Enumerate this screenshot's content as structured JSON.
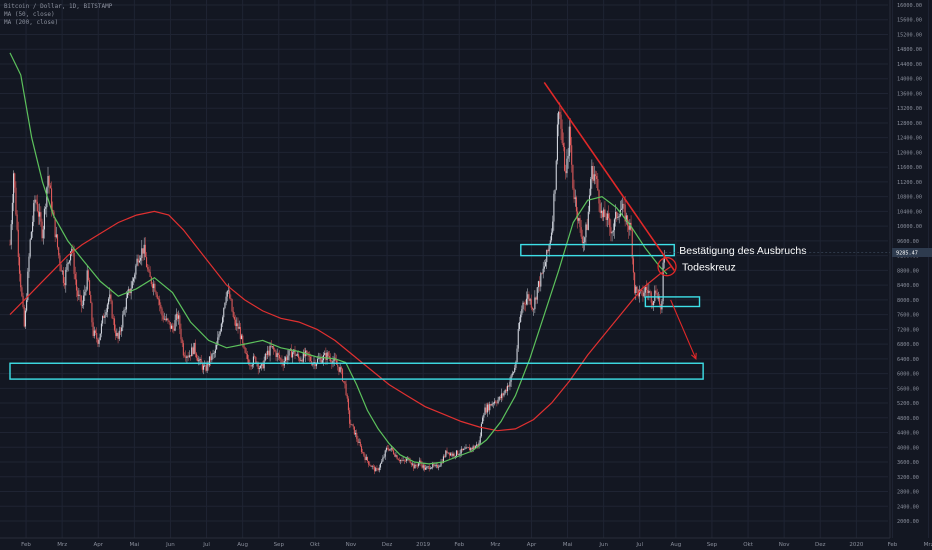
{
  "legend": {
    "symbol_line": "Bitcoin / Dollar, 1D, BITSTAMP",
    "ma50_line": "MA (50, close)",
    "ma200_line": "MA (200, close)"
  },
  "price_tag": "9285.47",
  "annotations": {
    "breakout_confirmation": "Bestätigung des Ausbruchs",
    "death_cross": "Todeskreuz"
  },
  "colors": {
    "background": "#131722",
    "grid": "#1f2433",
    "axis_text": "#8a8f9c",
    "up_candle": "#cfd3dc",
    "down_candle": "#e05b5b",
    "ma50": "#5cc15c",
    "ma200": "#e03030",
    "zones": "#3ee0e8",
    "trendline": "#e02828",
    "price_tag_bg": "#2e3b4e"
  },
  "chart_data": {
    "type": "candlestick",
    "x_axis_labels": [
      "Feb",
      "Mrz",
      "Apr",
      "Mai",
      "Jun",
      "Jul",
      "Aug",
      "Sep",
      "Okt",
      "Nov",
      "Dez",
      "2019",
      "Feb",
      "Mrz",
      "Apr",
      "Mai",
      "Jun",
      "Jul",
      "Aug",
      "Sep",
      "Okt",
      "Nov",
      "Dez",
      "2020",
      "Feb",
      "Mrz"
    ],
    "y_axis_labels": [
      "2000.00",
      "2400.00",
      "2800.00",
      "3200.00",
      "3600.00",
      "4000.00",
      "4400.00",
      "4800.00",
      "5200.00",
      "5600.00",
      "6000.00",
      "6400.00",
      "6800.00",
      "7200.00",
      "7600.00",
      "8000.00",
      "8400.00",
      "8800.00",
      "9200.00",
      "9600.00",
      "10000.00",
      "10400.00",
      "10800.00",
      "11200.00",
      "11600.00",
      "12000.00",
      "12400.00",
      "12800.00",
      "13200.00",
      "13600.00",
      "14000.00",
      "14400.00",
      "14800.00",
      "15200.00",
      "15600.00",
      "16000.00"
    ],
    "ylim": [
      2000,
      16000
    ],
    "x_range_months": [
      0.0,
      26.6
    ],
    "price_path": [
      [
        0.0,
        9500
      ],
      [
        0.1,
        11500
      ],
      [
        0.25,
        9000
      ],
      [
        0.4,
        7200
      ],
      [
        0.55,
        9500
      ],
      [
        0.7,
        10800
      ],
      [
        0.9,
        9800
      ],
      [
        1.05,
        11400
      ],
      [
        1.2,
        10200
      ],
      [
        1.35,
        9200
      ],
      [
        1.5,
        8500
      ],
      [
        1.7,
        9500
      ],
      [
        1.85,
        8200
      ],
      [
        2.0,
        7800
      ],
      [
        2.15,
        8700
      ],
      [
        2.3,
        7100
      ],
      [
        2.45,
        6900
      ],
      [
        2.6,
        7600
      ],
      [
        2.75,
        8100
      ],
      [
        2.9,
        7200
      ],
      [
        3.0,
        6900
      ],
      [
        3.2,
        7900
      ],
      [
        3.4,
        8500
      ],
      [
        3.55,
        9200
      ],
      [
        3.7,
        9400
      ],
      [
        3.85,
        8600
      ],
      [
        4.0,
        8400
      ],
      [
        4.1,
        8100
      ],
      [
        4.2,
        7600
      ],
      [
        4.35,
        7400
      ],
      [
        4.5,
        7200
      ],
      [
        4.65,
        7600
      ],
      [
        4.8,
        6600
      ],
      [
        4.95,
        6500
      ],
      [
        5.1,
        6700
      ],
      [
        5.25,
        6300
      ],
      [
        5.4,
        6100
      ],
      [
        5.55,
        6400
      ],
      [
        5.7,
        6600
      ],
      [
        5.85,
        7400
      ],
      [
        6.0,
        8300
      ],
      [
        6.1,
        8000
      ],
      [
        6.2,
        7400
      ],
      [
        6.35,
        7200
      ],
      [
        6.5,
        6500
      ],
      [
        6.65,
        6300
      ],
      [
        6.8,
        6400
      ],
      [
        6.95,
        6100
      ],
      [
        7.1,
        6500
      ],
      [
        7.25,
        6700
      ],
      [
        7.4,
        6500
      ],
      [
        7.55,
        6300
      ],
      [
        7.7,
        6500
      ],
      [
        7.85,
        6600
      ],
      [
        8.0,
        6400
      ],
      [
        8.2,
        6500
      ],
      [
        8.4,
        6300
      ],
      [
        8.6,
        6400
      ],
      [
        8.8,
        6500
      ],
      [
        9.0,
        6300
      ],
      [
        9.15,
        6100
      ],
      [
        9.3,
        5600
      ],
      [
        9.4,
        4700
      ],
      [
        9.55,
        4400
      ],
      [
        9.7,
        4000
      ],
      [
        9.85,
        3700
      ],
      [
        10.0,
        3500
      ],
      [
        10.15,
        3350
      ],
      [
        10.3,
        3600
      ],
      [
        10.45,
        4000
      ],
      [
        10.6,
        3900
      ],
      [
        10.75,
        3700
      ],
      [
        10.9,
        3600
      ],
      [
        11.05,
        3700
      ],
      [
        11.2,
        3450
      ],
      [
        11.35,
        3600
      ],
      [
        11.5,
        3400
      ],
      [
        11.65,
        3500
      ],
      [
        11.8,
        3450
      ],
      [
        11.95,
        3600
      ],
      [
        12.1,
        3900
      ],
      [
        12.25,
        3800
      ],
      [
        12.4,
        3850
      ],
      [
        12.55,
        3900
      ],
      [
        12.7,
        3950
      ],
      [
        12.85,
        4000
      ],
      [
        13.0,
        4100
      ],
      [
        13.1,
        4950
      ],
      [
        13.25,
        5100
      ],
      [
        13.4,
        5250
      ],
      [
        13.55,
        5300
      ],
      [
        13.7,
        5500
      ],
      [
        13.85,
        5800
      ],
      [
        14.0,
        6200
      ],
      [
        14.1,
        7300
      ],
      [
        14.2,
        7900
      ],
      [
        14.35,
        8100
      ],
      [
        14.5,
        7800
      ],
      [
        14.6,
        8300
      ],
      [
        14.75,
        8700
      ],
      [
        14.9,
        9300
      ],
      [
        15.0,
        9900
      ],
      [
        15.1,
        11200
      ],
      [
        15.2,
        13400
      ],
      [
        15.3,
        12200
      ],
      [
        15.4,
        11300
      ],
      [
        15.5,
        12600
      ],
      [
        15.6,
        11000
      ],
      [
        15.7,
        10500
      ],
      [
        15.8,
        9800
      ],
      [
        15.9,
        9600
      ],
      [
        16.0,
        10100
      ],
      [
        16.1,
        11500
      ],
      [
        16.2,
        11400
      ],
      [
        16.3,
        10900
      ],
      [
        16.4,
        10200
      ],
      [
        16.5,
        10300
      ],
      [
        16.6,
        10000
      ],
      [
        16.7,
        9900
      ],
      [
        16.8,
        10300
      ],
      [
        16.9,
        10500
      ],
      [
        17.0,
        10400
      ],
      [
        17.1,
        10100
      ],
      [
        17.2,
        9900
      ],
      [
        17.3,
        8300
      ],
      [
        17.4,
        8200
      ],
      [
        17.5,
        8100
      ],
      [
        17.6,
        8300
      ],
      [
        17.7,
        8200
      ],
      [
        17.8,
        8000
      ],
      [
        17.9,
        8300
      ],
      [
        18.0,
        7900
      ],
      [
        18.05,
        7500
      ],
      [
        18.1,
        9200
      ],
      [
        18.15,
        9285
      ]
    ],
    "ma50_path": [
      [
        0.0,
        14700
      ],
      [
        0.3,
        14100
      ],
      [
        0.6,
        12400
      ],
      [
        0.9,
        11200
      ],
      [
        1.2,
        10300
      ],
      [
        1.6,
        9600
      ],
      [
        2.0,
        9100
      ],
      [
        2.5,
        8500
      ],
      [
        3.0,
        8100
      ],
      [
        3.5,
        8300
      ],
      [
        4.0,
        8600
      ],
      [
        4.5,
        8200
      ],
      [
        5.0,
        7400
      ],
      [
        5.5,
        6900
      ],
      [
        6.0,
        6700
      ],
      [
        6.5,
        6800
      ],
      [
        7.0,
        6900
      ],
      [
        7.5,
        6700
      ],
      [
        8.0,
        6600
      ],
      [
        8.5,
        6450
      ],
      [
        9.0,
        6400
      ],
      [
        9.3,
        6300
      ],
      [
        9.6,
        5700
      ],
      [
        9.9,
        5000
      ],
      [
        10.2,
        4500
      ],
      [
        10.5,
        4100
      ],
      [
        10.8,
        3800
      ],
      [
        11.2,
        3600
      ],
      [
        11.6,
        3550
      ],
      [
        12.0,
        3600
      ],
      [
        12.4,
        3750
      ],
      [
        12.8,
        3900
      ],
      [
        13.2,
        4200
      ],
      [
        13.6,
        4700
      ],
      [
        14.0,
        5400
      ],
      [
        14.4,
        6400
      ],
      [
        14.8,
        7600
      ],
      [
        15.2,
        8800
      ],
      [
        15.6,
        10100
      ],
      [
        16.0,
        10700
      ],
      [
        16.4,
        10800
      ],
      [
        16.8,
        10500
      ],
      [
        17.2,
        10000
      ],
      [
        17.6,
        9400
      ],
      [
        18.0,
        8900
      ],
      [
        18.2,
        8700
      ]
    ],
    "ma200_path": [
      [
        0.0,
        7600
      ],
      [
        0.4,
        8000
      ],
      [
        0.8,
        8400
      ],
      [
        1.2,
        8800
      ],
      [
        1.6,
        9200
      ],
      [
        2.0,
        9500
      ],
      [
        2.5,
        9800
      ],
      [
        3.0,
        10100
      ],
      [
        3.5,
        10300
      ],
      [
        4.0,
        10400
      ],
      [
        4.4,
        10300
      ],
      [
        4.8,
        9900
      ],
      [
        5.2,
        9400
      ],
      [
        5.6,
        8900
      ],
      [
        6.0,
        8400
      ],
      [
        6.5,
        8000
      ],
      [
        7.0,
        7700
      ],
      [
        7.5,
        7500
      ],
      [
        8.0,
        7400
      ],
      [
        8.5,
        7200
      ],
      [
        9.0,
        6900
      ],
      [
        9.5,
        6500
      ],
      [
        10.0,
        6100
      ],
      [
        10.5,
        5700
      ],
      [
        11.0,
        5400
      ],
      [
        11.5,
        5100
      ],
      [
        12.0,
        4900
      ],
      [
        12.5,
        4700
      ],
      [
        13.0,
        4550
      ],
      [
        13.5,
        4450
      ],
      [
        14.0,
        4500
      ],
      [
        14.5,
        4750
      ],
      [
        15.0,
        5200
      ],
      [
        15.5,
        5800
      ],
      [
        16.0,
        6500
      ],
      [
        16.5,
        7100
      ],
      [
        17.0,
        7700
      ],
      [
        17.5,
        8300
      ],
      [
        18.0,
        8700
      ],
      [
        18.3,
        8900
      ]
    ],
    "zones": [
      {
        "x1": 14.15,
        "x2": 18.4,
        "y1": 9200,
        "y2": 9500
      },
      {
        "x1": 17.6,
        "x2": 19.1,
        "y1": 7820,
        "y2": 8080
      },
      {
        "x1": 0.0,
        "x2": 19.2,
        "y1": 5850,
        "y2": 6280
      }
    ],
    "trendline": {
      "from": [
        14.8,
        13900
      ],
      "to": [
        18.4,
        8800
      ]
    },
    "death_cross": {
      "x": 18.2,
      "y": 8900
    },
    "projection_arrow": {
      "from": [
        18.3,
        8000
      ],
      "to": [
        19.0,
        6400
      ]
    }
  }
}
